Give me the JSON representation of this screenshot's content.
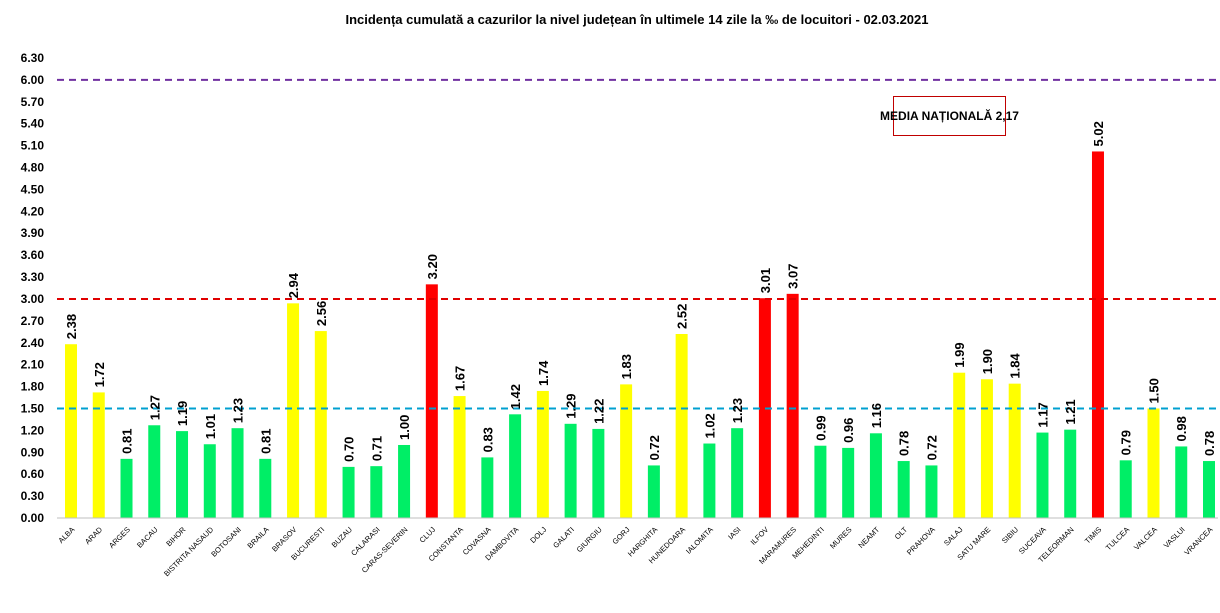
{
  "chart_data": {
    "type": "bar",
    "title": "Incidența cumulată a cazurilor la nivel județean în ultimele 14 zile la ‰ de locuitori - 02.03.2021",
    "xlabel": "",
    "ylabel": "",
    "ylim": [
      0,
      6.3
    ],
    "yticks": [
      "0.00",
      "0.30",
      "0.60",
      "0.90",
      "1.20",
      "1.50",
      "1.80",
      "2.10",
      "2.40",
      "2.70",
      "3.00",
      "3.30",
      "3.60",
      "3.90",
      "4.20",
      "4.50",
      "4.80",
      "5.10",
      "5.40",
      "5.70",
      "6.00",
      "6.30"
    ],
    "grid": false,
    "categories": [
      "ALBA",
      "ARAD",
      "ARGES",
      "BACAU",
      "BIHOR",
      "BISTRITA NASAUD",
      "BOTOSANI",
      "BRAILA",
      "BRASOV",
      "BUCURESTI",
      "BUZAU",
      "CALARASI",
      "CARAS-SEVERIN",
      "CLUJ",
      "CONSTANTA",
      "COVASNA",
      "DAMBOVITA",
      "DOLJ",
      "GALATI",
      "GIURGIU",
      "GORJ",
      "HARGHITA",
      "HUNEDOARA",
      "IALOMITA",
      "IASI",
      "ILFOV",
      "MARAMURES",
      "MEHEDINTI",
      "MURES",
      "NEAMT",
      "OLT",
      "PRAHOVA",
      "SALAJ",
      "SATU MARE",
      "SIBIU",
      "SUCEAVA",
      "TELEORMAN",
      "TIMIS",
      "TULCEA",
      "VALCEA",
      "VASLUI",
      "VRANCEA"
    ],
    "values": [
      2.38,
      1.72,
      0.81,
      1.27,
      1.19,
      1.01,
      1.23,
      0.81,
      2.94,
      2.56,
      0.7,
      0.71,
      1.0,
      3.2,
      1.67,
      0.83,
      1.42,
      1.74,
      1.29,
      1.22,
      1.83,
      0.72,
      2.52,
      1.02,
      1.23,
      3.01,
      3.07,
      0.99,
      0.96,
      1.16,
      0.78,
      0.72,
      1.99,
      1.9,
      1.84,
      1.17,
      1.21,
      5.02,
      0.79,
      1.5,
      0.98,
      0.78
    ],
    "data_labels": [
      "2.38",
      "1.72",
      "0.81",
      "1.27",
      "1.19",
      "1.01",
      "1.23",
      "0.81",
      "2.94",
      "2.56",
      "0.70",
      "0.71",
      "1.00",
      "3.20",
      "1.67",
      "0.83",
      "1.42",
      "1.74",
      "1.29",
      "1.22",
      "1.83",
      "0.72",
      "2.52",
      "1.02",
      "1.23",
      "3.01",
      "3.07",
      "0.99",
      "0.96",
      "1.16",
      "0.78",
      "0.72",
      "1.99",
      "1.90",
      "1.84",
      "1.17",
      "1.21",
      "5.02",
      "0.79",
      "1.50",
      "0.98",
      "0.78"
    ],
    "color_thresholds": {
      "low": "#00ee66",
      "medium": "#ffff00",
      "high": "#ff0000",
      "medium_from": 1.5,
      "high_from": 3.0
    },
    "reference_lines": [
      {
        "value": 6.0,
        "color": "#7030a0",
        "style": "dashed"
      },
      {
        "value": 3.0,
        "color": "#e00000",
        "style": "dashed"
      },
      {
        "value": 1.5,
        "color": "#00a0d0",
        "style": "dashed"
      }
    ],
    "annotation": "MEDIA NAȚIONALĂ 2,17"
  }
}
